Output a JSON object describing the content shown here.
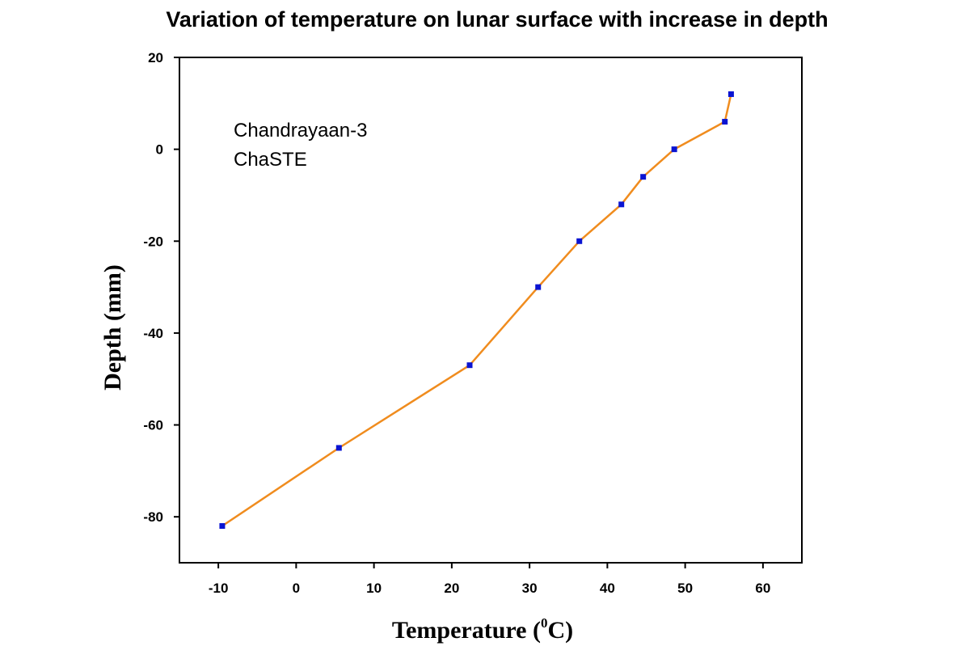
{
  "chart_data": {
    "type": "line",
    "title": "Variation of temperature on lunar surface with increase in depth",
    "xlabel": {
      "prefix": "Temperature (",
      "superscript": "0",
      "suffix": "C)"
    },
    "ylabel": "Depth (mm)",
    "xlim": [
      -15,
      65
    ],
    "ylim": [
      -90,
      20
    ],
    "xticks": [
      -10,
      0,
      10,
      20,
      30,
      40,
      50,
      60
    ],
    "yticks": [
      20,
      0,
      -20,
      -40,
      -60,
      -80
    ],
    "annotations": [
      "Chandrayaan-3",
      "ChaSTE"
    ],
    "grid": false,
    "series": [
      {
        "line_color": "#f08c1e",
        "marker_color": "#0a14d2",
        "x": [
          -9.5,
          5.5,
          22.3,
          31.1,
          36.4,
          41.8,
          44.6,
          48.6,
          55.1,
          55.9
        ],
        "y": [
          -82,
          -65,
          -47,
          -30,
          -20,
          -12,
          -6,
          0,
          6,
          12
        ]
      }
    ]
  }
}
